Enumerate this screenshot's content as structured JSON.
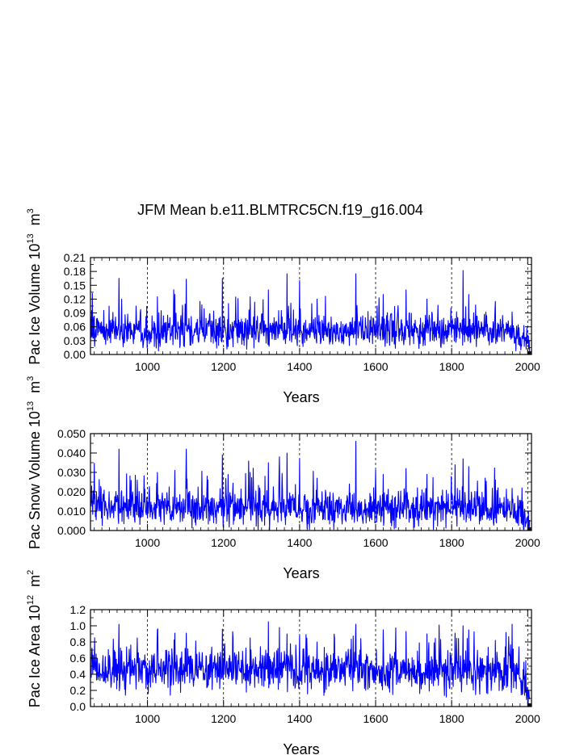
{
  "chart_data": [
    {
      "type": "line",
      "panel": "ice-volume",
      "title": "JFM Mean b.e11.BLMTRC5CN.f19_g16.004",
      "xlabel": "Years",
      "ylabel": "Pac Ice Volume 10",
      "ylabel_exp": "13",
      "ylabel_unit": "m",
      "ylabel_unit_exp": "3",
      "xlim": [
        850,
        2010
      ],
      "ylim": [
        0.0,
        0.21
      ],
      "xticks": [
        1000,
        1200,
        1400,
        1600,
        1800,
        2000
      ],
      "xtick_labels": [
        "1000",
        "1200",
        "1400",
        "1600",
        "1800",
        "2000"
      ],
      "yticks": [
        0.0,
        0.03,
        0.06,
        0.09,
        0.12,
        0.15,
        0.18,
        0.21
      ],
      "ytick_labels": [
        "0.00",
        "0.03",
        "0.06",
        "0.09",
        "0.12",
        "0.15",
        "0.18",
        "0.21"
      ],
      "vlines": [
        1000,
        1200,
        1400,
        1600,
        1800,
        2000
      ],
      "series": [
        {
          "name": "Pac Ice Volume",
          "color": "#0000ff",
          "mean": 0.05,
          "baseline_std": 0.016,
          "late_decline": {
            "start": 1960,
            "end_value": 0.015
          },
          "peaks": [
            [
              853,
              0.095
            ],
            [
              925,
              0.165
            ],
            [
              970,
              0.105
            ],
            [
              1026,
              0.125
            ],
            [
              1072,
              0.13
            ],
            [
              1102,
              0.163
            ],
            [
              1197,
              0.165
            ],
            [
              1270,
              0.125
            ],
            [
              1318,
              0.14
            ],
            [
              1345,
              0.095
            ],
            [
              1367,
              0.175
            ],
            [
              1400,
              0.16
            ],
            [
              1446,
              0.12
            ],
            [
              1548,
              0.175
            ],
            [
              1620,
              0.13
            ],
            [
              1680,
              0.14
            ],
            [
              1735,
              0.12
            ],
            [
              1830,
              0.182
            ],
            [
              1845,
              0.13
            ],
            [
              1915,
              0.115
            ],
            [
              1990,
              0.063
            ]
          ]
        }
      ]
    },
    {
      "type": "line",
      "panel": "snow-volume",
      "xlabel": "Years",
      "ylabel": "Pac Snow Volume 10",
      "ylabel_exp": "13",
      "ylabel_unit": "m",
      "ylabel_unit_exp": "3",
      "xlim": [
        850,
        2010
      ],
      "ylim": [
        0.0,
        0.05
      ],
      "xticks": [
        1000,
        1200,
        1400,
        1600,
        1800,
        2000
      ],
      "xtick_labels": [
        "1000",
        "1200",
        "1400",
        "1600",
        "1800",
        "2000"
      ],
      "yticks": [
        0.0,
        0.01,
        0.02,
        0.03,
        0.04,
        0.05
      ],
      "ytick_labels": [
        "0.000",
        "0.010",
        "0.020",
        "0.030",
        "0.040",
        "0.050"
      ],
      "vlines": [
        1000,
        1200,
        1400,
        1600,
        1800,
        2000
      ],
      "series": [
        {
          "name": "Pac Snow Volume",
          "color": "#0000ff",
          "mean": 0.0115,
          "baseline_std": 0.0045,
          "late_decline": {
            "start": 1960,
            "end_value": 0.003
          },
          "peaks": [
            [
              853,
              0.023
            ],
            [
              925,
              0.042
            ],
            [
              973,
              0.026
            ],
            [
              1026,
              0.03
            ],
            [
              1072,
              0.031
            ],
            [
              1102,
              0.042
            ],
            [
              1197,
              0.039
            ],
            [
              1270,
              0.03
            ],
            [
              1318,
              0.035
            ],
            [
              1347,
              0.038
            ],
            [
              1367,
              0.04
            ],
            [
              1400,
              0.037
            ],
            [
              1446,
              0.027
            ],
            [
              1548,
              0.046
            ],
            [
              1620,
              0.029
            ],
            [
              1680,
              0.032
            ],
            [
              1735,
              0.029
            ],
            [
              1830,
              0.037
            ],
            [
              1845,
              0.033
            ],
            [
              1915,
              0.026
            ],
            [
              1985,
              0.022
            ]
          ]
        }
      ]
    },
    {
      "type": "line",
      "panel": "ice-area",
      "xlabel": "Years",
      "ylabel": "Pac Ice Area 10",
      "ylabel_exp": "12",
      "ylabel_unit": "m",
      "ylabel_unit_exp": "2",
      "xlim": [
        850,
        2010
      ],
      "ylim": [
        0.0,
        1.2
      ],
      "xticks": [
        1000,
        1200,
        1400,
        1600,
        1800,
        2000
      ],
      "xtick_labels": [
        "1000",
        "1200",
        "1400",
        "1600",
        "1800",
        "2000"
      ],
      "yticks": [
        0.0,
        0.2,
        0.4,
        0.6,
        0.8,
        1.0,
        1.2
      ],
      "ytick_labels": [
        "0.0",
        "0.2",
        "0.4",
        "0.6",
        "0.8",
        "1.0",
        "1.2"
      ],
      "vlines": [
        1000,
        1200,
        1400,
        1600,
        1800,
        2000
      ],
      "series": [
        {
          "name": "Pac Ice Area",
          "color": "#0000ff",
          "mean": 0.44,
          "baseline_std": 0.12,
          "late_decline": {
            "start": 1960,
            "end_value": 0.15
          },
          "peaks": [
            [
              853,
              0.65
            ],
            [
              925,
              1.02
            ],
            [
              973,
              0.85
            ],
            [
              1026,
              0.95
            ],
            [
              1072,
              0.91
            ],
            [
              1102,
              0.91
            ],
            [
              1197,
              0.96
            ],
            [
              1270,
              0.85
            ],
            [
              1318,
              1.05
            ],
            [
              1347,
              0.98
            ],
            [
              1367,
              0.9
            ],
            [
              1400,
              0.88
            ],
            [
              1446,
              0.8
            ],
            [
              1548,
              1.02
            ],
            [
              1620,
              0.95
            ],
            [
              1680,
              0.93
            ],
            [
              1735,
              0.9
            ],
            [
              1830,
              1.0
            ],
            [
              1845,
              0.95
            ],
            [
              1915,
              0.82
            ],
            [
              1990,
              0.55
            ]
          ]
        }
      ]
    }
  ]
}
